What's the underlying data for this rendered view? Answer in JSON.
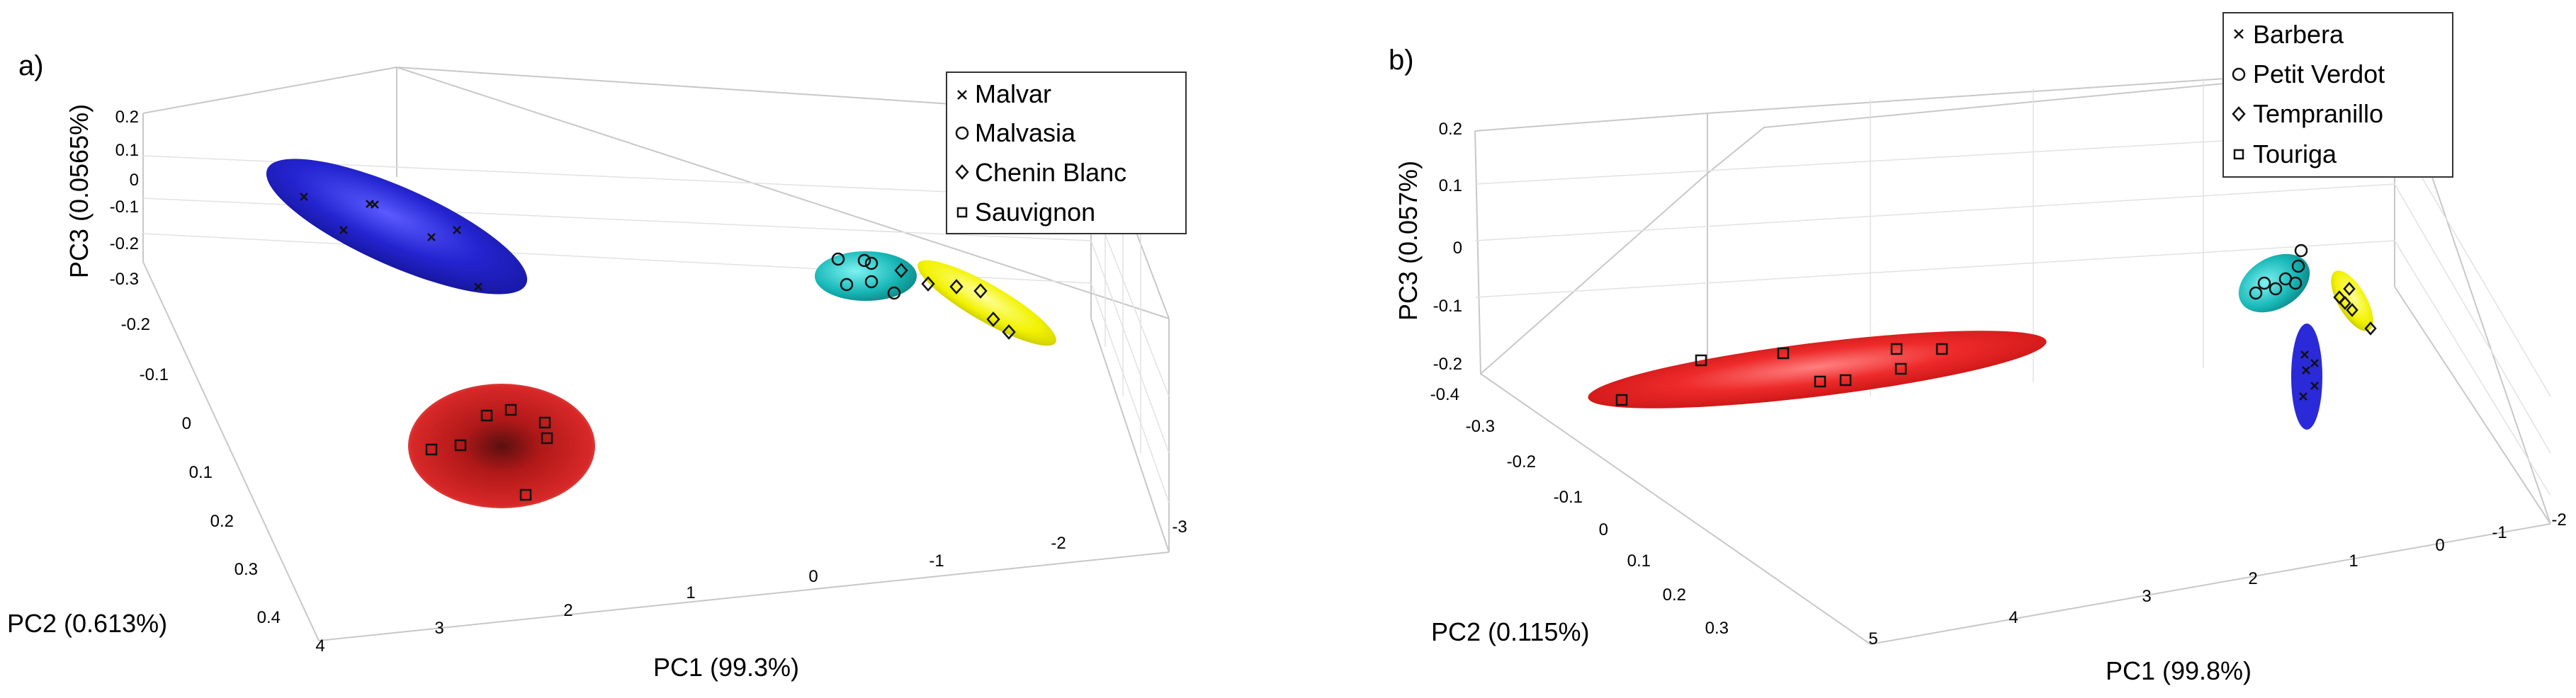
{
  "chart_data": [
    {
      "panel_label": "a)",
      "type": "scatter",
      "xlabel": "PC1 (99.3%)",
      "ylabel": "PC2 (0.613%)",
      "zlabel": "PC3 (0.0565%)",
      "x_ticks": [
        "4",
        "3",
        "2",
        "1",
        "0",
        "-1",
        "-2",
        "-3"
      ],
      "y_ticks": [
        "-0.3",
        "-0.2",
        "-0.1",
        "0",
        "0.1",
        "0.2",
        "0.3",
        "0.4"
      ],
      "z_ticks": [
        "0.2",
        "0.1",
        "0",
        "-0.1",
        "-0.2"
      ],
      "legend": [
        "Malvar",
        "Malvasia",
        "Chenin Blanc",
        "Sauvignon"
      ],
      "series": [
        {
          "name": "Malvar",
          "marker": "x",
          "color": "#2a2ad8",
          "points": [
            {
              "x": 3.6,
              "y": -0.28,
              "z": 0.05
            },
            {
              "x": 3.4,
              "y": -0.26,
              "z": 0.04
            },
            {
              "x": 3.3,
              "y": -0.25,
              "z": 0.05
            },
            {
              "x": 3.1,
              "y": -0.22,
              "z": 0.02
            },
            {
              "x": 2.9,
              "y": -0.2,
              "z": 0.0
            },
            {
              "x": 2.7,
              "y": -0.22,
              "z": -0.02
            },
            {
              "x": 2.6,
              "y": -0.18,
              "z": -0.04
            }
          ]
        },
        {
          "name": "Malvasia",
          "marker": "o",
          "color": "#1fb8b8",
          "points": [
            {
              "x": -0.5,
              "y": -0.2,
              "z": 0.0
            },
            {
              "x": -0.6,
              "y": -0.19,
              "z": 0.01
            },
            {
              "x": -0.7,
              "y": -0.2,
              "z": -0.01
            },
            {
              "x": -0.8,
              "y": -0.18,
              "z": 0.0
            },
            {
              "x": -0.9,
              "y": -0.19,
              "z": -0.02
            },
            {
              "x": -0.6,
              "y": -0.17,
              "z": -0.01
            }
          ]
        },
        {
          "name": "Chenin Blanc",
          "marker": "diamond",
          "color": "#f2f200",
          "points": [
            {
              "x": -1.0,
              "y": -0.18,
              "z": 0.0
            },
            {
              "x": -1.2,
              "y": -0.17,
              "z": -0.02
            },
            {
              "x": -1.4,
              "y": -0.16,
              "z": -0.01
            },
            {
              "x": -1.6,
              "y": -0.15,
              "z": -0.03
            },
            {
              "x": -1.8,
              "y": -0.14,
              "z": -0.04
            },
            {
              "x": -2.0,
              "y": -0.13,
              "z": -0.05
            }
          ]
        },
        {
          "name": "Sauvignon",
          "marker": "square",
          "color": "#d42020",
          "points": [
            {
              "x": 2.9,
              "y": 0.12,
              "z": 0.0
            },
            {
              "x": 2.8,
              "y": 0.12,
              "z": 0.01
            },
            {
              "x": 2.5,
              "y": 0.1,
              "z": 0.02
            },
            {
              "x": 2.4,
              "y": 0.1,
              "z": 0.03
            },
            {
              "x": 2.2,
              "y": 0.11,
              "z": 0.01
            },
            {
              "x": 2.1,
              "y": 0.12,
              "z": 0.0
            },
            {
              "x": 2.2,
              "y": 0.16,
              "z": -0.02
            }
          ]
        }
      ]
    },
    {
      "panel_label": "b)",
      "type": "scatter",
      "xlabel": "PC1 (99.8%)",
      "ylabel": "PC2 (0.115%)",
      "zlabel": "PC3 (0.057%)",
      "x_ticks": [
        "5",
        "4",
        "3",
        "2",
        "1",
        "0",
        "-1",
        "-2"
      ],
      "y_ticks": [
        "-0.4",
        "-0.3",
        "-0.2",
        "-0.1",
        "0",
        "0.1",
        "0.2",
        "0.3"
      ],
      "z_ticks": [
        "0.2",
        "0.1",
        "0",
        "-0.1",
        "-0.2"
      ],
      "legend": [
        "Barbera",
        "Petit Verdot",
        "Tempranillo",
        "Touriga"
      ],
      "series": [
        {
          "name": "Barbera",
          "marker": "x",
          "color": "#2a2ad8",
          "points": [
            {
              "x": -0.2,
              "y": 0.05,
              "z": -0.1
            },
            {
              "x": -0.2,
              "y": 0.06,
              "z": -0.12
            },
            {
              "x": -0.25,
              "y": 0.08,
              "z": -0.15
            },
            {
              "x": -0.2,
              "y": 0.1,
              "z": -0.17
            },
            {
              "x": -0.25,
              "y": 0.11,
              "z": -0.18
            }
          ]
        },
        {
          "name": "Petit Verdot",
          "marker": "o",
          "color": "#1fb8b8",
          "points": [
            {
              "x": -0.2,
              "y": -0.05,
              "z": 0.0
            },
            {
              "x": -0.25,
              "y": -0.05,
              "z": -0.01
            },
            {
              "x": -0.2,
              "y": -0.04,
              "z": -0.02
            },
            {
              "x": -0.3,
              "y": -0.04,
              "z": -0.01
            },
            {
              "x": -0.25,
              "y": -0.03,
              "z": -0.02
            },
            {
              "x": -0.3,
              "y": -0.03,
              "z": -0.03
            },
            {
              "x": -0.35,
              "y": -0.02,
              "z": 0.01
            }
          ]
        },
        {
          "name": "Tempranillo",
          "marker": "diamond",
          "color": "#f2f200",
          "points": [
            {
              "x": -0.5,
              "y": -0.03,
              "z": -0.02
            },
            {
              "x": -0.5,
              "y": -0.02,
              "z": -0.03
            },
            {
              "x": -0.55,
              "y": -0.02,
              "z": -0.04
            },
            {
              "x": -0.55,
              "y": -0.01,
              "z": -0.05
            },
            {
              "x": -0.6,
              "y": 0.0,
              "z": -0.07
            }
          ]
        },
        {
          "name": "Touriga",
          "marker": "square",
          "color": "#d42020",
          "points": [
            {
              "x": 4.9,
              "y": -0.2,
              "z": -0.1
            },
            {
              "x": 4.4,
              "y": -0.2,
              "z": -0.05
            },
            {
              "x": 3.8,
              "y": -0.18,
              "z": -0.05
            },
            {
              "x": 3.6,
              "y": -0.16,
              "z": -0.08
            },
            {
              "x": 3.4,
              "y": -0.16,
              "z": -0.1
            },
            {
              "x": 3.0,
              "y": -0.2,
              "z": -0.04
            },
            {
              "x": 2.9,
              "y": -0.18,
              "z": -0.07
            },
            {
              "x": 2.7,
              "y": -0.2,
              "z": -0.04
            }
          ]
        }
      ]
    }
  ]
}
